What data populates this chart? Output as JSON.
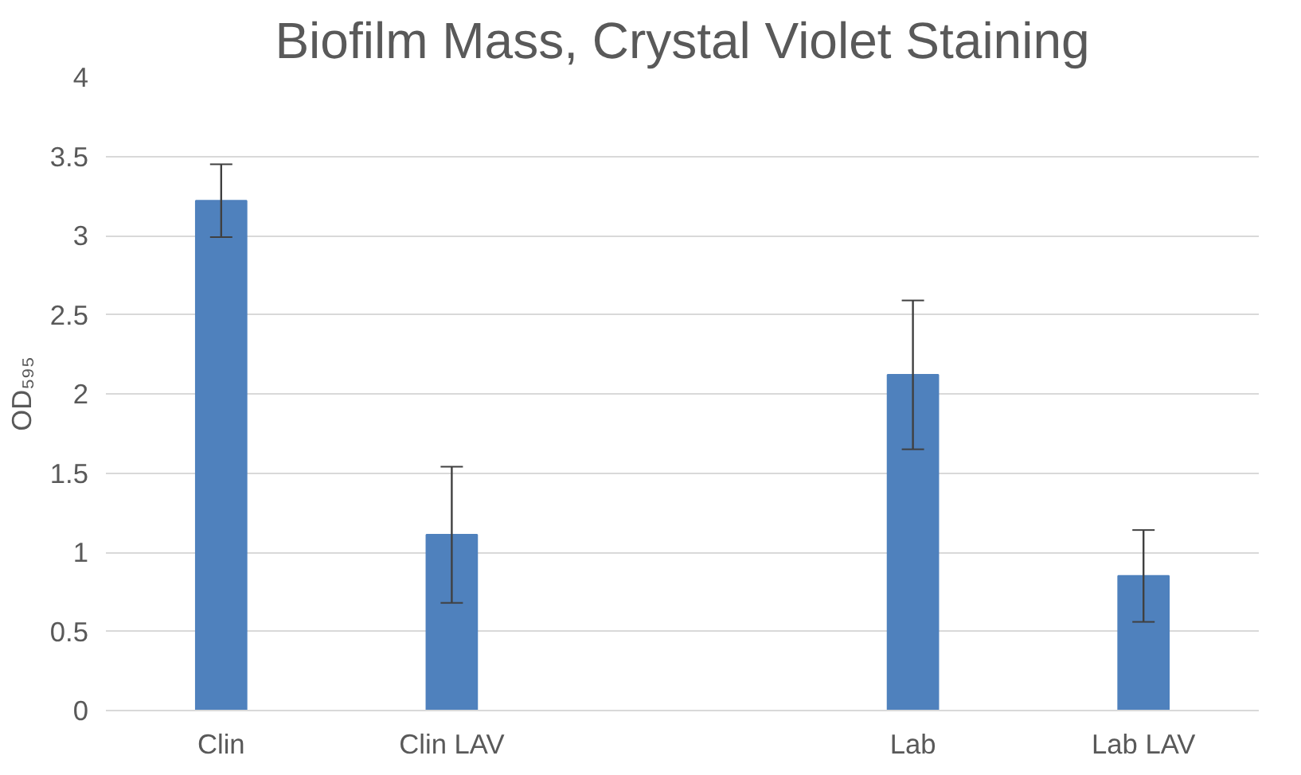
{
  "chart_data": {
    "type": "bar",
    "title": "Biofilm Mass, Crystal Violet Staining",
    "ylabel": "OD₅₉₅",
    "categories": [
      "Clin",
      "Clin LAV",
      null,
      "Lab",
      "Lab LAV"
    ],
    "values": [
      3.22,
      1.11,
      null,
      2.12,
      0.85
    ],
    "errors": [
      0.23,
      0.43,
      null,
      0.47,
      0.29
    ],
    "color": "#4f81bd",
    "ylim": [
      0,
      4
    ],
    "yticks": [
      0,
      0.5,
      1,
      1.5,
      2,
      2.5,
      3,
      3.5,
      4
    ],
    "grid": "y"
  }
}
